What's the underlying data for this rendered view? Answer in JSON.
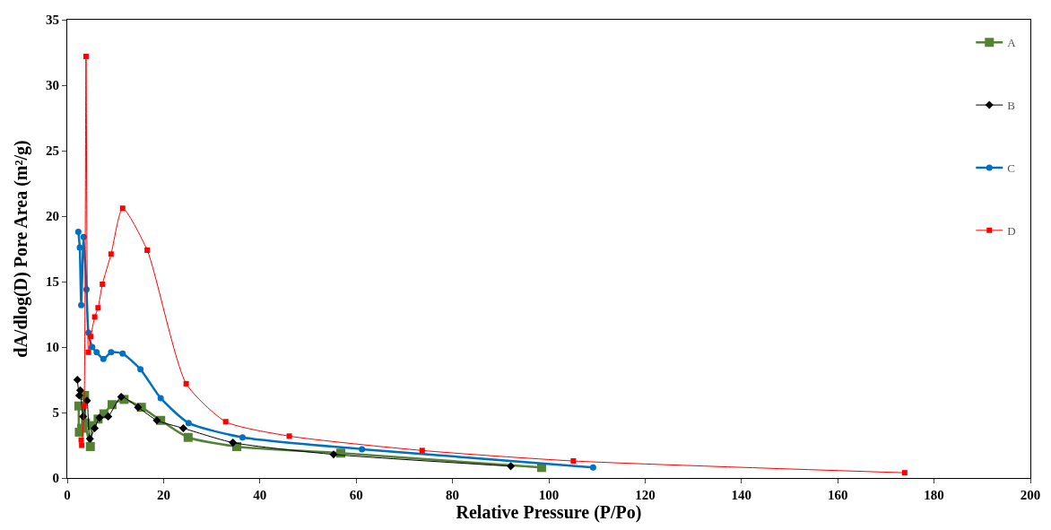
{
  "chart_data": {
    "type": "line",
    "xlabel": "Relative Pressure (P/Po)",
    "ylabel": "dA/dlog(D) Pore Area (m²/g)",
    "xlim": [
      0,
      200
    ],
    "xticks": [
      0,
      20,
      40,
      60,
      80,
      100,
      120,
      140,
      160,
      180,
      200
    ],
    "ylim": [
      0,
      35
    ],
    "yticks": [
      0,
      5,
      10,
      15,
      20,
      25,
      30,
      35
    ],
    "legend": "top right",
    "line_style": "solid",
    "series": [
      {
        "name": "A",
        "color": "#548235",
        "marker": "square",
        "x": [
          2.4,
          2.5,
          3.0,
          3.6,
          3.8,
          4.8,
          5.2,
          6.4,
          7.6,
          9.3,
          11.8,
          15.4,
          19.4,
          25.1,
          35.2,
          56.8,
          98.5
        ],
        "values": [
          5.5,
          3.5,
          3.8,
          6.3,
          4.2,
          2.4,
          4.0,
          4.5,
          4.9,
          5.6,
          6.0,
          5.4,
          4.4,
          3.1,
          2.4,
          1.9,
          0.8
        ]
      },
      {
        "name": "B",
        "color": "#000000",
        "marker": "diamond",
        "x": [
          2.1,
          2.5,
          2.7,
          3.3,
          4.1,
          4.7,
          5.7,
          6.7,
          8.5,
          11.2,
          14.7,
          18.6,
          24.1,
          34.4,
          55.3,
          92.1
        ],
        "values": [
          7.5,
          6.3,
          6.7,
          4.7,
          5.9,
          3.0,
          3.8,
          4.6,
          4.7,
          6.2,
          5.4,
          4.4,
          3.8,
          2.7,
          1.8,
          0.9
        ]
      },
      {
        "name": "C",
        "color": "#0070c0",
        "marker": "circle",
        "x": [
          2.3,
          2.6,
          2.9,
          3.4,
          4.0,
          4.4,
          5.2,
          6.1,
          7.5,
          9.1,
          11.5,
          15.2,
          19.4,
          25.2,
          36.4,
          61.2,
          109.2
        ],
        "values": [
          18.8,
          17.6,
          13.2,
          18.4,
          14.4,
          11.1,
          10.0,
          9.6,
          9.1,
          9.6,
          9.5,
          8.3,
          6.1,
          4.2,
          3.1,
          2.2,
          0.8
        ]
      },
      {
        "name": "D",
        "color": "#ff0000",
        "marker": "square",
        "x": [
          2.9,
          3.0,
          3.5,
          3.9,
          4.4,
          4.9,
          5.7,
          6.4,
          7.3,
          9.1,
          11.5,
          16.6,
          24.7,
          32.9,
          46.1,
          73.7,
          105.1,
          173.9
        ],
        "values": [
          2.9,
          2.5,
          5.5,
          32.2,
          9.6,
          10.8,
          12.3,
          13.0,
          14.8,
          17.1,
          20.6,
          17.4,
          7.2,
          4.3,
          3.2,
          2.1,
          1.3,
          0.4
        ]
      }
    ]
  }
}
